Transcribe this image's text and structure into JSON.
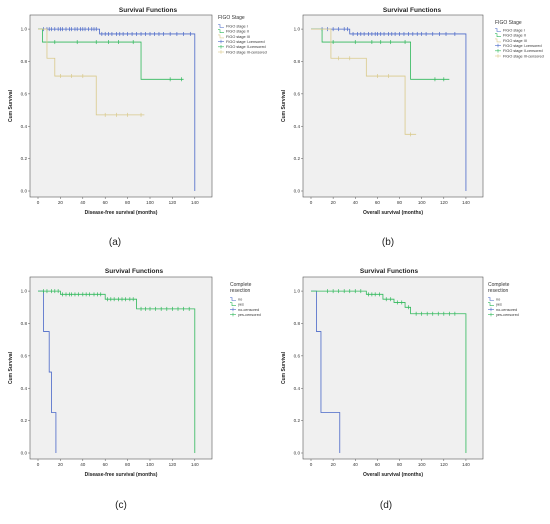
{
  "panel_labels": [
    "(a)",
    "(b)",
    "(c)",
    "(d)"
  ],
  "colors": {
    "plot_bg": "#f0f0f0",
    "stage_I": "#4a68c8",
    "stage_II": "#2fb85a",
    "stage_III": "#d9c98a",
    "no": "#4a68c8",
    "yes": "#2fb85a"
  },
  "chart_data": [
    {
      "type": "line",
      "title": "Survival Functions",
      "xlabel": "Disease-free survival (months)",
      "ylabel": "Cum Survival",
      "xlim": [
        0,
        150
      ],
      "ylim": [
        0,
        1.05
      ],
      "xticks": [
        "0",
        "20",
        "40",
        "60",
        "80",
        "100",
        "120",
        "140"
      ],
      "yticks": [
        "0.0",
        "0.2",
        "0.4",
        "0.6",
        "0.8",
        "1.0"
      ],
      "grid": false,
      "legend_title": "FIGO Stage",
      "legend_position": "right",
      "legend": [
        "FIGO stage I",
        "FIGO stage II",
        "FIGO stage III",
        "FIGO stage I-censored",
        "FIGO stage II-censored",
        "FIGO stage III-censored"
      ],
      "series": [
        {
          "name": "FIGO stage I",
          "color": "#4a68c8",
          "steps": [
            [
              0,
              1.0
            ],
            [
              55,
              1.0
            ],
            [
              55,
              0.97
            ],
            [
              140,
              0.97
            ],
            [
              140,
              0.0
            ]
          ],
          "censored": [
            5,
            8,
            10,
            12,
            15,
            18,
            20,
            22,
            25,
            28,
            30,
            33,
            35,
            38,
            40,
            42,
            45,
            48,
            50,
            52,
            57,
            60,
            63,
            66,
            70,
            73,
            76,
            80,
            84,
            88,
            92,
            96,
            100,
            104,
            108,
            112,
            118,
            124,
            130,
            136
          ]
        },
        {
          "name": "FIGO stage II",
          "color": "#2fb85a",
          "steps": [
            [
              0,
              1.0
            ],
            [
              4,
              1.0
            ],
            [
              4,
              0.92
            ],
            [
              92,
              0.92
            ],
            [
              92,
              0.69
            ],
            [
              130,
              0.69
            ]
          ],
          "censored": [
            15,
            35,
            52,
            63,
            72,
            85,
            118,
            128
          ]
        },
        {
          "name": "FIGO stage III",
          "color": "#d9c98a",
          "steps": [
            [
              0,
              1.0
            ],
            [
              8,
              1.0
            ],
            [
              8,
              0.82
            ],
            [
              15,
              0.82
            ],
            [
              15,
              0.71
            ],
            [
              52,
              0.71
            ],
            [
              52,
              0.47
            ],
            [
              95,
              0.47
            ]
          ],
          "censored": [
            20,
            30,
            40,
            60,
            70,
            80,
            92
          ]
        }
      ]
    },
    {
      "type": "line",
      "title": "Survival Functions",
      "xlabel": "Overall survival (months)",
      "ylabel": "Cum Survival",
      "xlim": [
        0,
        150
      ],
      "ylim": [
        0,
        1.05
      ],
      "xticks": [
        "0",
        "20",
        "40",
        "60",
        "80",
        "100",
        "120",
        "140"
      ],
      "yticks": [
        "0.0",
        "0.2",
        "0.4",
        "0.6",
        "0.8",
        "1.0"
      ],
      "grid": false,
      "legend_title": "FIGO Stage",
      "legend_position": "right",
      "legend": [
        "FIGO stage I",
        "FIGO stage II",
        "FIGO stage III",
        "FIGO stage I-censored",
        "FIGO stage II-censored",
        "FIGO stage III-censored"
      ],
      "series": [
        {
          "name": "FIGO stage I",
          "color": "#4a68c8",
          "steps": [
            [
              0,
              1.0
            ],
            [
              35,
              1.0
            ],
            [
              35,
              0.97
            ],
            [
              140,
              0.97
            ],
            [
              140,
              0.0
            ]
          ],
          "censored": [
            10,
            15,
            20,
            25,
            30,
            33,
            38,
            42,
            45,
            48,
            52,
            55,
            58,
            60,
            63,
            66,
            70,
            73,
            76,
            80,
            84,
            88,
            92,
            96,
            100,
            104,
            110,
            116,
            122,
            130
          ]
        },
        {
          "name": "FIGO stage II",
          "color": "#2fb85a",
          "steps": [
            [
              0,
              1.0
            ],
            [
              10,
              1.0
            ],
            [
              10,
              0.92
            ],
            [
              90,
              0.92
            ],
            [
              90,
              0.69
            ],
            [
              125,
              0.69
            ]
          ],
          "censored": [
            20,
            40,
            55,
            63,
            72,
            85,
            112,
            120
          ]
        },
        {
          "name": "FIGO stage III",
          "color": "#d9c98a",
          "steps": [
            [
              0,
              1.0
            ],
            [
              18,
              1.0
            ],
            [
              18,
              0.82
            ],
            [
              50,
              0.82
            ],
            [
              50,
              0.71
            ],
            [
              85,
              0.71
            ],
            [
              85,
              0.35
            ],
            [
              95,
              0.35
            ]
          ],
          "censored": [
            25,
            35,
            60,
            70,
            90
          ]
        }
      ]
    },
    {
      "type": "line",
      "title": "Survival Functions",
      "xlabel": "Disease-free survival (months)",
      "ylabel": "Cum Survival",
      "xlim": [
        0,
        150
      ],
      "ylim": [
        0,
        1.05
      ],
      "xticks": [
        "0",
        "20",
        "40",
        "60",
        "80",
        "100",
        "120",
        "140"
      ],
      "yticks": [
        "0.0",
        "0.2",
        "0.4",
        "0.6",
        "0.8",
        "1.0"
      ],
      "grid": false,
      "legend_title": "Complete resection",
      "legend_position": "right",
      "legend": [
        "no",
        "yes",
        "no-censored",
        "yes-censored"
      ],
      "series": [
        {
          "name": "no",
          "color": "#4a68c8",
          "steps": [
            [
              0,
              1.0
            ],
            [
              5,
              1.0
            ],
            [
              5,
              0.75
            ],
            [
              10,
              0.75
            ],
            [
              10,
              0.5
            ],
            [
              12,
              0.5
            ],
            [
              12,
              0.25
            ],
            [
              16,
              0.25
            ],
            [
              16,
              0.0
            ]
          ],
          "censored": []
        },
        {
          "name": "yes",
          "color": "#2fb85a",
          "steps": [
            [
              0,
              1.0
            ],
            [
              20,
              1.0
            ],
            [
              20,
              0.98
            ],
            [
              60,
              0.98
            ],
            [
              60,
              0.95
            ],
            [
              88,
              0.95
            ],
            [
              88,
              0.89
            ],
            [
              140,
              0.89
            ],
            [
              140,
              0.0
            ]
          ],
          "censored": [
            5,
            8,
            12,
            15,
            18,
            22,
            25,
            28,
            30,
            33,
            36,
            40,
            43,
            46,
            50,
            53,
            56,
            62,
            65,
            68,
            72,
            75,
            78,
            82,
            85,
            92,
            96,
            100,
            105,
            110,
            115,
            120,
            125,
            130,
            135
          ]
        }
      ]
    },
    {
      "type": "line",
      "title": "Survival Functions",
      "xlabel": "Overall survival (months)",
      "ylabel": "Cum Survival",
      "xlim": [
        0,
        150
      ],
      "ylim": [
        0,
        1.05
      ],
      "xticks": [
        "0",
        "20",
        "40",
        "60",
        "80",
        "100",
        "120",
        "140"
      ],
      "yticks": [
        "0.0",
        "0.2",
        "0.4",
        "0.6",
        "0.8",
        "1.0"
      ],
      "grid": false,
      "legend_title": "Complete resection",
      "legend_position": "right",
      "legend": [
        "no",
        "yes",
        "no-censored",
        "yes-censored"
      ],
      "series": [
        {
          "name": "no",
          "color": "#4a68c8",
          "steps": [
            [
              0,
              1.0
            ],
            [
              5,
              1.0
            ],
            [
              5,
              0.75
            ],
            [
              9,
              0.75
            ],
            [
              9,
              0.25
            ],
            [
              26,
              0.25
            ],
            [
              26,
              0.0
            ]
          ],
          "censored": []
        },
        {
          "name": "yes",
          "color": "#2fb85a",
          "steps": [
            [
              0,
              1.0
            ],
            [
              50,
              1.0
            ],
            [
              50,
              0.98
            ],
            [
              65,
              0.98
            ],
            [
              65,
              0.95
            ],
            [
              75,
              0.95
            ],
            [
              75,
              0.93
            ],
            [
              85,
              0.93
            ],
            [
              85,
              0.9
            ],
            [
              90,
              0.9
            ],
            [
              90,
              0.86
            ],
            [
              140,
              0.86
            ],
            [
              140,
              0.0
            ]
          ],
          "censored": [
            15,
            20,
            25,
            30,
            35,
            40,
            45,
            52,
            55,
            58,
            62,
            68,
            72,
            78,
            82,
            88,
            95,
            100,
            105,
            110,
            115,
            120,
            125,
            130
          ]
        }
      ]
    }
  ]
}
